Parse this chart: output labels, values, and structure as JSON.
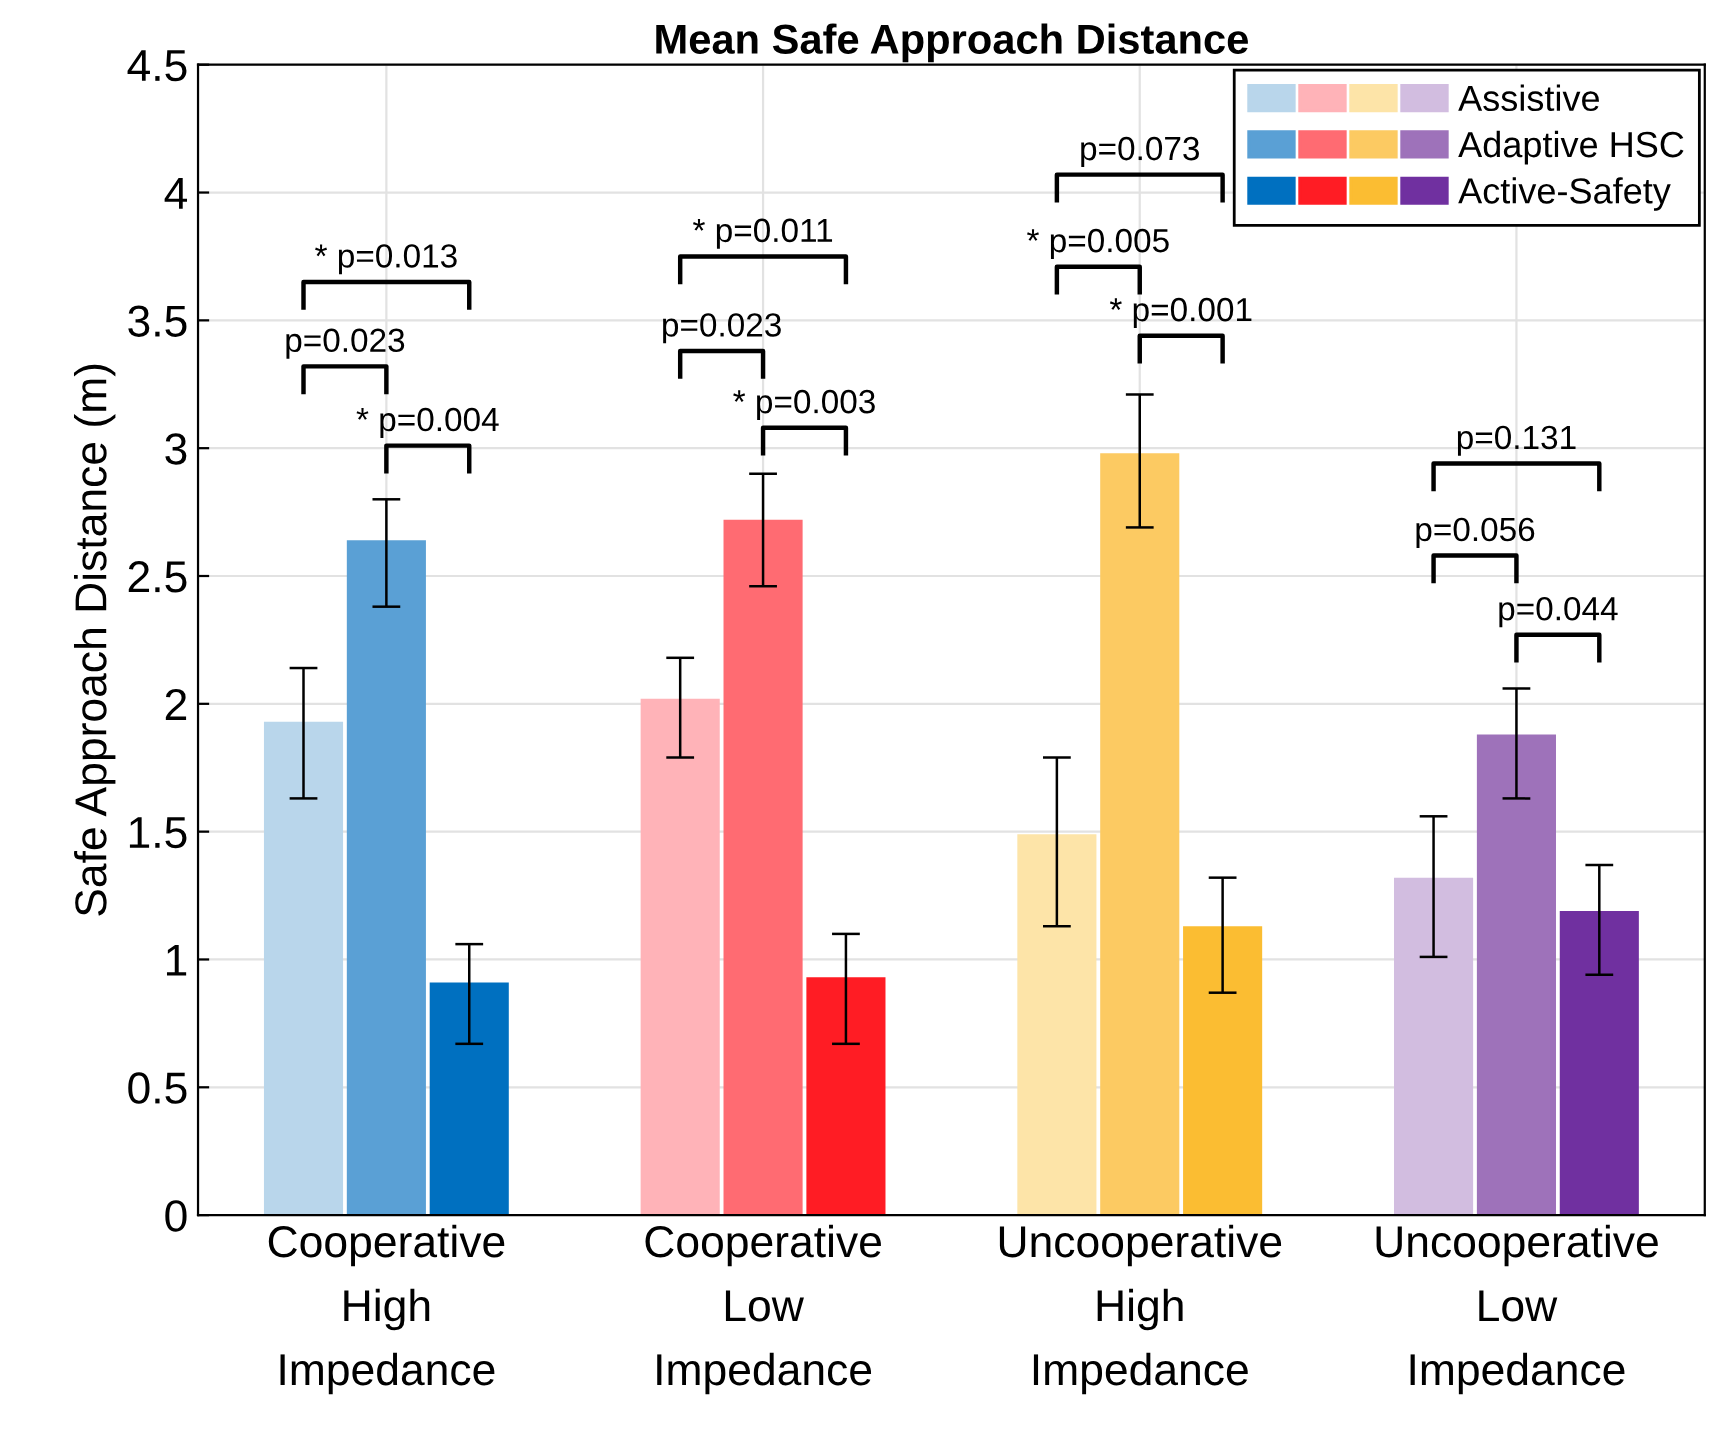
{
  "chart_data": {
    "type": "bar",
    "title": "Mean Safe Approach Distance",
    "ylabel": "Safe Approach Distance (m)",
    "categories": [
      "Cooperative\nHigh\nImpedance",
      "Cooperative\nLow\nImpedance",
      "Uncooperative\nHigh\nImpedance",
      "Uncooperative\nLow\nImpedance"
    ],
    "series": [
      {
        "name": "Assistive",
        "colors": [
          "#b9d6eb",
          "#ffb3b8",
          "#fde4a8",
          "#d2bde0"
        ],
        "values": [
          1.93,
          2.02,
          1.49,
          1.32
        ],
        "errors": [
          [
            1.63,
            2.14
          ],
          [
            1.79,
            2.18
          ],
          [
            1.13,
            1.79
          ],
          [
            1.01,
            1.56
          ]
        ]
      },
      {
        "name": "Adaptive HSC",
        "colors": [
          "#5aa0d5",
          "#ff6b72",
          "#fcca62",
          "#9e72ba"
        ],
        "values": [
          2.64,
          2.72,
          2.98,
          1.88
        ],
        "errors": [
          [
            2.38,
            2.8
          ],
          [
            2.46,
            2.9
          ],
          [
            2.69,
            3.21
          ],
          [
            1.63,
            2.06
          ]
        ]
      },
      {
        "name": "Active-Safety",
        "colors": [
          "#0070c0",
          "#ff1c24",
          "#fbbd32",
          "#7030a0"
        ],
        "values": [
          0.91,
          0.93,
          1.13,
          1.19
        ],
        "errors": [
          [
            0.67,
            1.06
          ],
          [
            0.67,
            1.1
          ],
          [
            0.87,
            1.32
          ],
          [
            0.94,
            1.37
          ]
        ]
      }
    ],
    "ylim": [
      0,
      4.5
    ],
    "yticks": [
      0,
      0.5,
      1,
      1.5,
      2,
      2.5,
      3,
      3.5,
      4,
      4.5
    ],
    "grid": true,
    "legend": "top right",
    "annotations": [
      "p=0.023",
      "* p=0.004",
      "* p=0.013",
      "p=0.023",
      "* p=0.003",
      "* p=0.011",
      "* p=0.005",
      "* p=0.001",
      "p=0.073",
      "p=0.056",
      "p=0.044",
      "p=0.131"
    ]
  }
}
